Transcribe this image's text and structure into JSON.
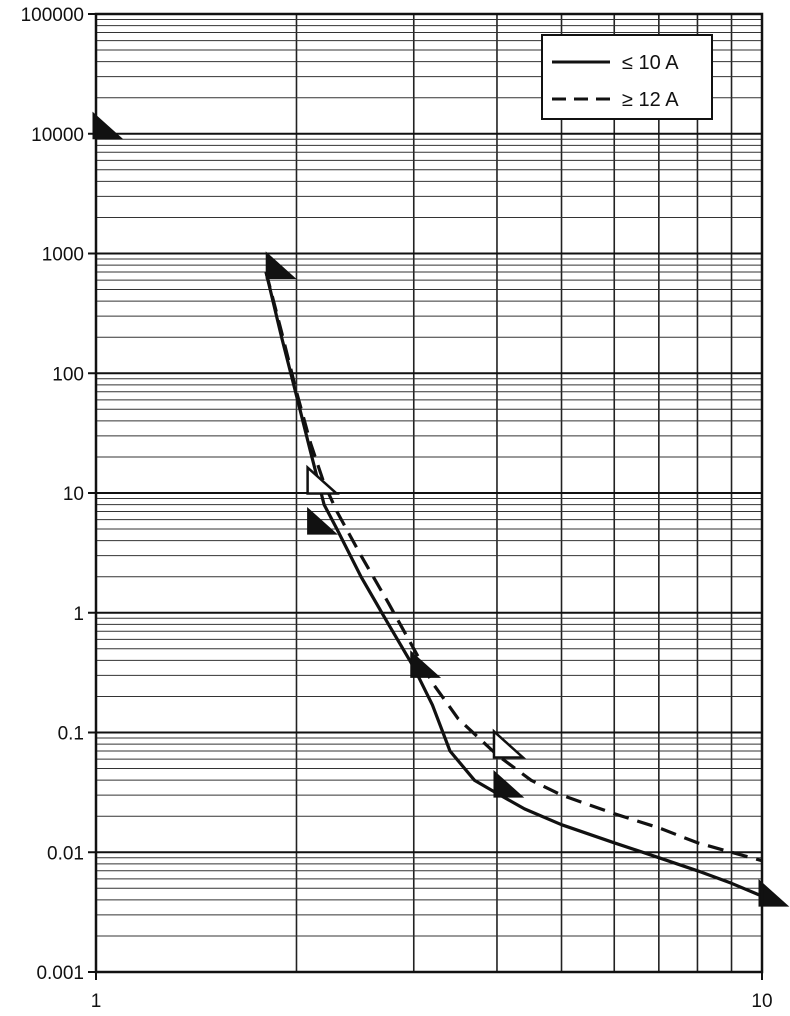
{
  "chart_data": {
    "type": "line",
    "title": "",
    "xlabel": "",
    "ylabel": "",
    "xscale": "log",
    "yscale": "log",
    "xlim": [
      1,
      10
    ],
    "ylim": [
      0.001,
      100000
    ],
    "grid": true,
    "legend_position": "top-right",
    "x_tick_labels": [
      "1",
      "10"
    ],
    "y_tick_labels": [
      "0.001",
      "0.01",
      "0.1",
      "1",
      "10",
      "100",
      "1000",
      "10000",
      "100000"
    ],
    "series": [
      {
        "name": "≤ 10 A",
        "style": "solid",
        "x": [
          1.8,
          1.9,
          2.0,
          2.1,
          2.2,
          2.3,
          2.5,
          2.75,
          3.0,
          3.2,
          3.4,
          3.7,
          4.0,
          4.4,
          5.0,
          6.0,
          7.0,
          8.0,
          9.0,
          10.0
        ],
        "y": [
          700,
          200,
          65,
          22,
          8,
          5,
          2,
          0.8,
          0.35,
          0.17,
          0.07,
          0.04,
          0.031,
          0.023,
          0.017,
          0.012,
          0.009,
          0.007,
          0.0055,
          0.0043
        ]
      },
      {
        "name": "≥ 12 A",
        "style": "dashed",
        "x": [
          1.8,
          1.9,
          2.0,
          2.1,
          2.2,
          2.3,
          2.5,
          2.75,
          3.0,
          3.2,
          3.5,
          4.0,
          4.5,
          5.0,
          6.0,
          7.0,
          8.0,
          9.0,
          10.0
        ],
        "y": [
          700,
          220,
          70,
          26,
          12,
          7,
          3,
          1.2,
          0.5,
          0.26,
          0.13,
          0.065,
          0.04,
          0.03,
          0.021,
          0.016,
          0.012,
          0.01,
          0.0085
        ]
      }
    ],
    "markers": [
      {
        "style": "filled",
        "x": 1.82,
        "y": 750
      },
      {
        "style": "open",
        "x": 2.1,
        "y": 12
      },
      {
        "style": "filled",
        "x": 2.1,
        "y": 5.5
      },
      {
        "style": "filled",
        "x": 3.0,
        "y": 0.35
      },
      {
        "style": "open",
        "x": 4.0,
        "y": 0.075
      },
      {
        "style": "filled",
        "x": 4.0,
        "y": 0.035
      },
      {
        "style": "filled",
        "x": 10.0,
        "y": 0.0043
      },
      {
        "style": "filled",
        "x": 1.0,
        "y": 11000
      }
    ]
  }
}
